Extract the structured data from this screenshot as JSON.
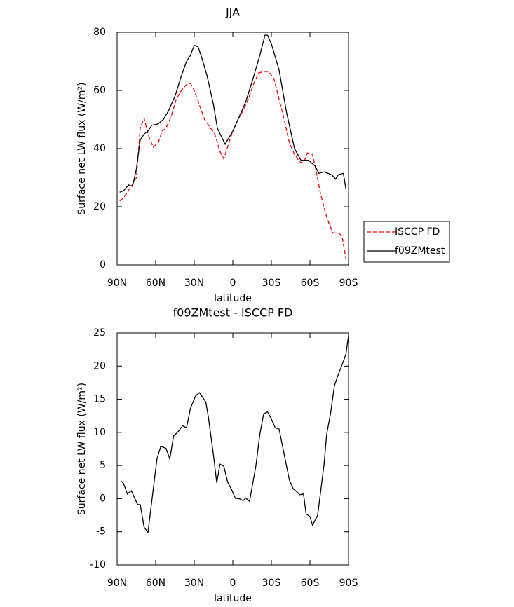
{
  "chart_data": [
    {
      "type": "line",
      "title": "JJA",
      "xlabel": "latitude",
      "ylabel": "Surface net LW flux (W/m²)",
      "xlim": [
        90,
        -90
      ],
      "xticks": [
        {
          "value": 90,
          "label": "90N"
        },
        {
          "value": 60,
          "label": "60N"
        },
        {
          "value": 30,
          "label": "30N"
        },
        0,
        {
          "value": -30,
          "label": "30S"
        },
        {
          "value": -60,
          "label": "60S"
        },
        {
          "value": -90,
          "label": "90S"
        }
      ],
      "ylim": [
        0,
        80
      ],
      "yticks": [
        0,
        20,
        40,
        60,
        80
      ],
      "legend": "outside-right",
      "series": [
        {
          "name": "ISCCP FD",
          "color": "#ff0000",
          "dashed": true,
          "x": [
            88,
            85,
            82,
            79,
            75,
            72,
            69,
            66,
            62,
            58,
            55,
            52,
            48,
            44,
            40,
            36,
            33,
            30,
            26,
            22,
            18,
            14,
            10,
            7,
            3,
            0,
            -4,
            -8,
            -12,
            -16,
            -20,
            -24,
            -28,
            -32,
            -36,
            -40,
            -44,
            -48,
            -52,
            -55,
            -58,
            -62,
            -65,
            -68,
            -72,
            -75,
            -78,
            -82,
            -85,
            -88
          ],
          "values": [
            22,
            23,
            25,
            27,
            30,
            47,
            50.5,
            45,
            40.5,
            42,
            46,
            47,
            51,
            57,
            60,
            62,
            62.5,
            60,
            55,
            50,
            47.5,
            45,
            39,
            36.5,
            42,
            46,
            50,
            53,
            57,
            62,
            66,
            66.5,
            66.5,
            64,
            57,
            50,
            42,
            38,
            35.5,
            35,
            38.5,
            38,
            32,
            25,
            18,
            14,
            11,
            11,
            10,
            2
          ]
        },
        {
          "name": "f09ZMtest",
          "color": "#000000",
          "dashed": false,
          "x": [
            88,
            85,
            81,
            78,
            75,
            72,
            69,
            66,
            63,
            58,
            54,
            50,
            45,
            40,
            36,
            33,
            30,
            27,
            24,
            20,
            15,
            12,
            6,
            0,
            -4,
            -10,
            -15,
            -21,
            -25,
            -27,
            -30,
            -36,
            -42,
            -48,
            -53,
            -59,
            -64,
            -67,
            -71,
            -77,
            -80,
            -82,
            -86,
            -88
          ],
          "values": [
            25,
            25.5,
            27.5,
            27,
            33,
            43,
            45,
            46,
            48,
            48.5,
            50,
            53,
            58,
            65,
            70,
            72,
            75.5,
            75,
            71,
            65,
            55,
            47,
            41.5,
            46,
            50,
            56,
            63,
            72,
            79,
            79,
            76,
            67,
            52,
            40,
            36,
            36,
            34,
            31.5,
            32,
            31,
            29.5,
            31,
            31.5,
            26
          ]
        }
      ]
    },
    {
      "type": "line",
      "title": "f09ZMtest - ISCCP FD",
      "xlabel": "latitude",
      "ylabel": "Surface net LW flux (W/m²)",
      "xlim": [
        90,
        -90
      ],
      "xticks": [
        {
          "value": 90,
          "label": "90N"
        },
        {
          "value": 60,
          "label": "60N"
        },
        {
          "value": 30,
          "label": "30N"
        },
        0,
        {
          "value": -30,
          "label": "30S"
        },
        {
          "value": -60,
          "label": "60S"
        },
        {
          "value": -90,
          "label": "90S"
        }
      ],
      "ylim": [
        -10,
        25
      ],
      "yticks": [
        -10,
        -5,
        0,
        5,
        10,
        15,
        20,
        25
      ],
      "series": [
        {
          "color": "#000000",
          "dashed": false,
          "x": [
            87,
            85,
            82,
            79,
            74,
            72,
            69,
            66,
            59,
            56,
            52,
            49,
            46,
            43,
            39,
            36,
            33,
            29,
            26,
            21,
            19,
            15,
            12.5,
            10,
            7,
            4,
            1,
            -2,
            -5,
            -8,
            -10,
            -13,
            -18,
            -21,
            -24,
            -27,
            -30,
            -33,
            -36,
            -39,
            -44,
            -47,
            -50,
            -52,
            -55,
            -57,
            -60,
            -62,
            -66,
            -71,
            -73,
            -76,
            -79,
            -82,
            -85,
            -88,
            -90
          ],
          "values": [
            2.7,
            2.3,
            0.7,
            1.2,
            -0.9,
            -0.9,
            -4.3,
            -5.1,
            6,
            7.9,
            7.6,
            6,
            9.5,
            10,
            11,
            10.7,
            13.6,
            15.5,
            16,
            14.6,
            12.3,
            6.5,
            2.4,
            5.2,
            4.9,
            2.5,
            1.4,
            0.05,
            0,
            -0.3,
            0.1,
            -0.4,
            5,
            9.7,
            12.8,
            13.1,
            12,
            10.7,
            10.5,
            7.6,
            2.8,
            1.5,
            1,
            0.6,
            0.7,
            -2.3,
            -2.7,
            -4,
            -2.5,
            5.2,
            9.7,
            12.8,
            17,
            18.7,
            20.2,
            21.8,
            24.6
          ]
        }
      ]
    }
  ]
}
